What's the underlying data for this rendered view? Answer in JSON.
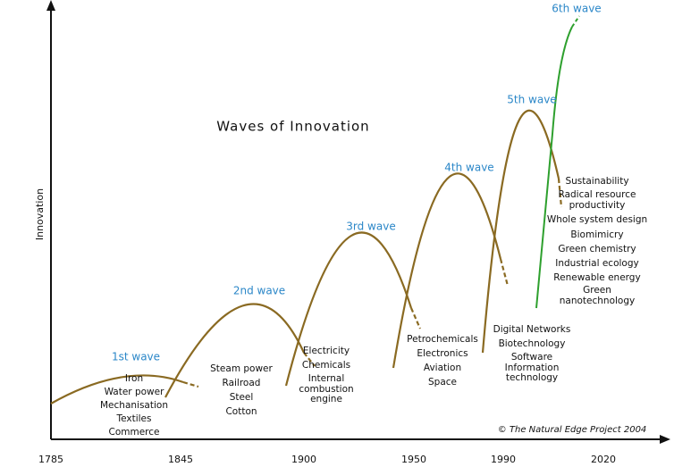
{
  "title": "Waves of Innovation",
  "y_axis_label": "Innovation",
  "x_axis_labels": [
    "1785",
    "1845",
    "1900",
    "1950",
    "1990",
    "2020"
  ],
  "waves": [
    {
      "name": "1st wave",
      "items": [
        "Iron",
        "Water power",
        "Mechanisation",
        "Textiles",
        "Commerce"
      ]
    },
    {
      "name": "2nd wave",
      "items": [
        "Steam power",
        "Railroad",
        "Steel",
        "Cotton"
      ]
    },
    {
      "name": "3rd wave",
      "items": [
        "Electricity",
        "Chemicals",
        "Internal",
        "combustion",
        "engine"
      ]
    },
    {
      "name": "4th wave",
      "items": [
        "Petrochemicals",
        "Electronics",
        "Aviation",
        "Space"
      ]
    },
    {
      "name": "5th wave",
      "items": [
        "Digital Networks",
        "Biotechnology",
        "Software",
        "Information",
        "technology"
      ]
    },
    {
      "name": "6th wave",
      "items": [
        "Sustainability",
        "Radical resource",
        "productivity",
        "Whole system design",
        "Biomimicry",
        "Green chemistry",
        "Industrial ecology",
        "Renewable energy",
        "Green",
        "nanotechnology"
      ]
    }
  ],
  "credit": "© The Natural Edge Project 2004"
}
